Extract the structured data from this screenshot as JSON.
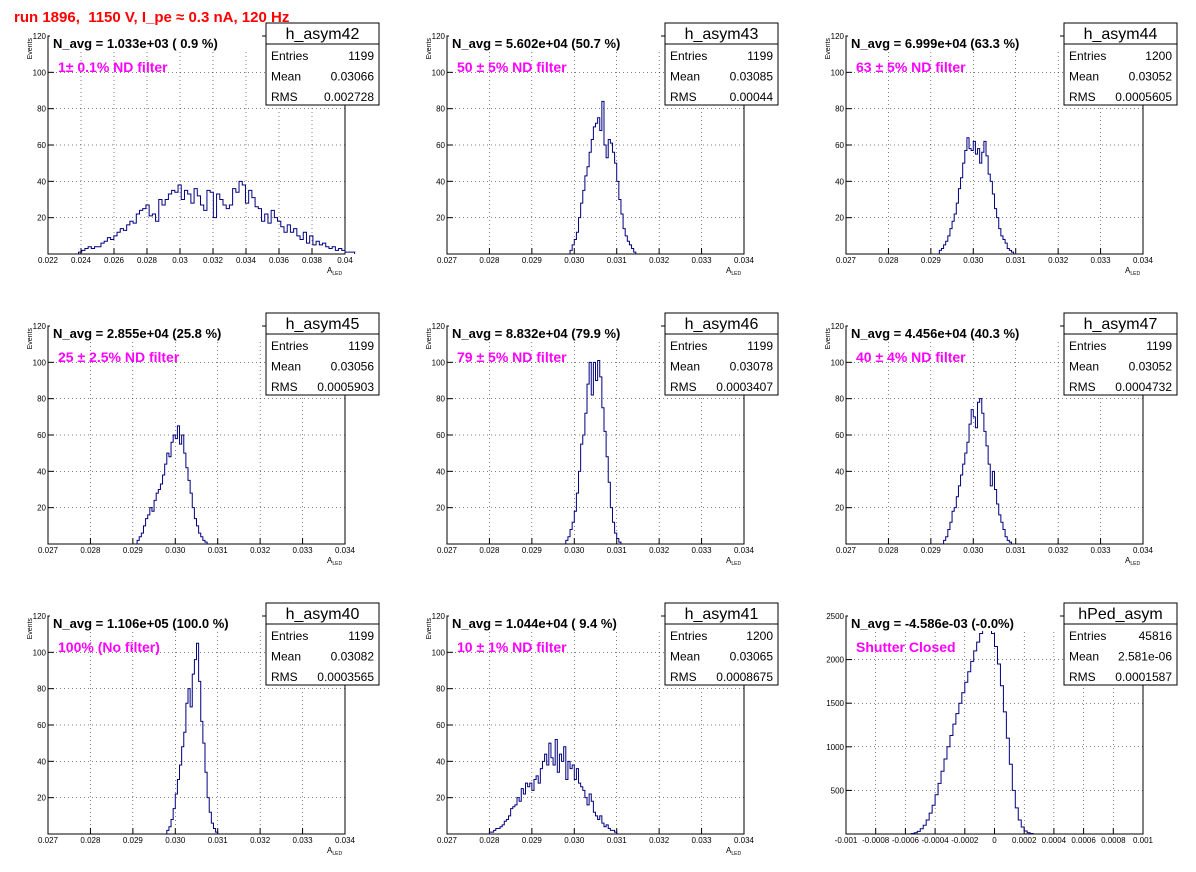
{
  "title": "run 1896,  1150 V, I_pe ≈ 0.3 nA, 120 Hz",
  "colors": {
    "histogram": "#000080",
    "annotation": "#ff00ff",
    "title": "#ff0000"
  },
  "chart_data": [
    {
      "type": "histogram",
      "name": "h_asym42",
      "stats": {
        "entries_label": "Entries",
        "entries": "1199",
        "mean_label": "Mean",
        "mean": "0.03066",
        "rms_label": "RMS",
        "rms": "0.002728"
      },
      "navg": "N_avg = 1.033e+03 ( 0.9 %)",
      "filter": "1± 0.1% ND filter",
      "xlabel": "A_LED",
      "ylabel": "Events",
      "xlim": [
        0.0215,
        0.04
      ],
      "ylim": [
        0,
        120
      ],
      "xticks": [
        "0.022",
        "0.024",
        "0.026",
        "0.028",
        "0.03",
        "0.032",
        "0.034",
        "0.036",
        "0.038",
        "0.04"
      ],
      "yticks": [
        "20",
        "40",
        "60",
        "80",
        "100",
        "120"
      ],
      "grid": true,
      "bins": {
        "start": 0.0234,
        "width": 0.0002,
        "counts": [
          1,
          2,
          3,
          4,
          3,
          4,
          4,
          6,
          7,
          9,
          8,
          10,
          12,
          14,
          13,
          16,
          18,
          17,
          22,
          24,
          25,
          27,
          21,
          22,
          18,
          30,
          27,
          30,
          33,
          35,
          34,
          38,
          30,
          35,
          33,
          28,
          36,
          32,
          27,
          24,
          35,
          34,
          20,
          33,
          30,
          27,
          25,
          27,
          36,
          34,
          40,
          38,
          28,
          35,
          31,
          26,
          25,
          18,
          22,
          17,
          24,
          20,
          18,
          15,
          12,
          16,
          12,
          14,
          10,
          8,
          12,
          6,
          10,
          5,
          7,
          5,
          6,
          4,
          3,
          4,
          2,
          3,
          2,
          1,
          1,
          1
        ]
      }
    },
    {
      "type": "histogram",
      "name": "h_asym43",
      "stats": {
        "entries_label": "Entries",
        "entries": "1199",
        "mean_label": "Mean",
        "mean": "0.03085",
        "rms_label": "RMS",
        "rms": "0.00044"
      },
      "navg": "N_avg = 5.602e+04 (50.7 %)",
      "filter": "50 ± 5% ND filter",
      "xlabel": "A_LED",
      "ylabel": "Events",
      "xlim": [
        0.027,
        0.034
      ],
      "ylim": [
        0,
        120
      ],
      "xticks": [
        "0.027",
        "0.028",
        "0.029",
        "0.030",
        "0.031",
        "0.032",
        "0.033",
        "0.034"
      ],
      "yticks": [
        "20",
        "40",
        "60",
        "80",
        "100",
        "120"
      ],
      "grid": true,
      "bins": {
        "start": 0.0299,
        "width": 5e-05,
        "counts": [
          2,
          5,
          8,
          12,
          20,
          28,
          35,
          43,
          48,
          56,
          63,
          70,
          72,
          75,
          68,
          84,
          60,
          53,
          63,
          61,
          56,
          50,
          40,
          30,
          22,
          14,
          10,
          7,
          5,
          3,
          1
        ]
      }
    },
    {
      "type": "histogram",
      "name": "h_asym44",
      "stats": {
        "entries_label": "Entries",
        "entries": "1200",
        "mean_label": "Mean",
        "mean": "0.03052",
        "rms_label": "RMS",
        "rms": "0.0005605"
      },
      "navg": "N_avg = 6.999e+04 (63.3 %)",
      "filter": "63 ± 5% ND filter",
      "xlabel": "A_LED",
      "ylabel": "Events",
      "xlim": [
        0.027,
        0.034
      ],
      "ylim": [
        0,
        120
      ],
      "xticks": [
        "0.027",
        "0.028",
        "0.029",
        "0.030",
        "0.031",
        "0.032",
        "0.033",
        "0.034"
      ],
      "yticks": [
        "20",
        "40",
        "60",
        "80",
        "100",
        "120"
      ],
      "grid": true,
      "bins": {
        "start": 0.0292,
        "width": 5e-05,
        "counts": [
          2,
          3,
          5,
          7,
          10,
          14,
          18,
          22,
          28,
          36,
          42,
          50,
          57,
          64,
          58,
          57,
          62,
          55,
          58,
          50,
          56,
          62,
          54,
          44,
          40,
          33,
          25,
          20,
          14,
          10,
          8,
          6,
          3,
          2,
          1
        ]
      }
    },
    {
      "type": "histogram",
      "name": "h_asym45",
      "stats": {
        "entries_label": "Entries",
        "entries": "1199",
        "mean_label": "Mean",
        "mean": "0.03056",
        "rms_label": "RMS",
        "rms": "0.0005903"
      },
      "navg": "N_avg = 2.855e+04 (25.8 %)",
      "filter": "25 ± 2.5% ND filter",
      "xlabel": "A_LED",
      "ylabel": "Events",
      "xlim": [
        0.027,
        0.034
      ],
      "ylim": [
        0,
        120
      ],
      "xticks": [
        "0.027",
        "0.028",
        "0.029",
        "0.030",
        "0.031",
        "0.032",
        "0.033",
        "0.034"
      ],
      "yticks": [
        "20",
        "40",
        "60",
        "80",
        "100",
        "120"
      ],
      "grid": true,
      "bins": {
        "start": 0.0291,
        "width": 5e-05,
        "counts": [
          2,
          4,
          6,
          10,
          14,
          16,
          20,
          18,
          24,
          28,
          30,
          33,
          38,
          44,
          50,
          48,
          56,
          60,
          58,
          65,
          55,
          60,
          50,
          42,
          35,
          28,
          20,
          14,
          10,
          6,
          4,
          2,
          1
        ]
      }
    },
    {
      "type": "histogram",
      "name": "h_asym46",
      "stats": {
        "entries_label": "Entries",
        "entries": "1199",
        "mean_label": "Mean",
        "mean": "0.03078",
        "rms_label": "RMS",
        "rms": "0.0003407"
      },
      "navg": "N_avg = 8.832e+04 (79.9 %)",
      "filter": "79 ± 5% ND filter",
      "xlabel": "A_LED",
      "ylabel": "Events",
      "xlim": [
        0.027,
        0.034
      ],
      "ylim": [
        0,
        120
      ],
      "xticks": [
        "0.027",
        "0.028",
        "0.029",
        "0.030",
        "0.031",
        "0.032",
        "0.033",
        "0.034"
      ],
      "yticks": [
        "20",
        "40",
        "60",
        "80",
        "100",
        "120"
      ],
      "grid": true,
      "bins": {
        "start": 0.0298,
        "width": 5e-05,
        "counts": [
          2,
          4,
          8,
          12,
          18,
          28,
          40,
          55,
          60,
          72,
          88,
          100,
          82,
          100,
          90,
          101,
          92,
          75,
          62,
          48,
          34,
          20,
          12,
          6,
          3,
          1
        ]
      }
    },
    {
      "type": "histogram",
      "name": "h_asym47",
      "stats": {
        "entries_label": "Entries",
        "entries": "1199",
        "mean_label": "Mean",
        "mean": "0.03052",
        "rms_label": "RMS",
        "rms": "0.0004732"
      },
      "navg": "N_avg = 4.456e+04 (40.3 %)",
      "filter": "40 ± 4% ND filter",
      "xlabel": "A_LED",
      "ylabel": "Events",
      "xlim": [
        0.027,
        0.034
      ],
      "ylim": [
        0,
        120
      ],
      "xticks": [
        "0.027",
        "0.028",
        "0.029",
        "0.030",
        "0.031",
        "0.032",
        "0.033",
        "0.034"
      ],
      "yticks": [
        "20",
        "40",
        "60",
        "80",
        "100",
        "120"
      ],
      "grid": true,
      "bins": {
        "start": 0.0293,
        "width": 5e-05,
        "counts": [
          2,
          4,
          8,
          12,
          18,
          20,
          26,
          32,
          38,
          44,
          50,
          56,
          66,
          74,
          70,
          64,
          78,
          80,
          72,
          62,
          54,
          44,
          32,
          40,
          30,
          22,
          16,
          12,
          8,
          4,
          2,
          1
        ]
      }
    },
    {
      "type": "histogram",
      "name": "h_asym40",
      "stats": {
        "entries_label": "Entries",
        "entries": "1199",
        "mean_label": "Mean",
        "mean": "0.03082",
        "rms_label": "RMS",
        "rms": "0.0003565"
      },
      "navg": "N_avg = 1.106e+05 (100.0 %)",
      "filter": "100% (No filter)",
      "xlabel": "A_LED",
      "ylabel": "Events",
      "xlim": [
        0.027,
        0.034
      ],
      "ylim": [
        0,
        120
      ],
      "xticks": [
        "0.027",
        "0.028",
        "0.029",
        "0.030",
        "0.031",
        "0.032",
        "0.033",
        "0.034"
      ],
      "yticks": [
        "20",
        "40",
        "60",
        "80",
        "100",
        "120"
      ],
      "grid": true,
      "bins": {
        "start": 0.0298,
        "width": 5e-05,
        "counts": [
          2,
          4,
          8,
          14,
          22,
          30,
          38,
          48,
          56,
          72,
          80,
          70,
          88,
          96,
          105,
          84,
          62,
          50,
          34,
          20,
          12,
          6,
          3,
          1
        ]
      }
    },
    {
      "type": "histogram",
      "name": "h_asym41",
      "stats": {
        "entries_label": "Entries",
        "entries": "1200",
        "mean_label": "Mean",
        "mean": "0.03065",
        "rms_label": "RMS",
        "rms": "0.0008675"
      },
      "navg": "N_avg = 1.044e+04 ( 9.4 %)",
      "filter": "10 ± 1% ND filter",
      "xlabel": "A_LED",
      "ylabel": "Events",
      "xlim": [
        0.027,
        0.034
      ],
      "ylim": [
        0,
        120
      ],
      "xticks": [
        "0.027",
        "0.028",
        "0.029",
        "0.030",
        "0.031",
        "0.032",
        "0.033",
        "0.034"
      ],
      "yticks": [
        "20",
        "40",
        "60",
        "80",
        "100",
        "120"
      ],
      "grid": true,
      "bins": {
        "start": 0.028,
        "width": 5e-05,
        "counts": [
          1,
          1,
          2,
          3,
          3,
          4,
          5,
          7,
          8,
          10,
          14,
          15,
          16,
          20,
          18,
          25,
          22,
          28,
          26,
          28,
          24,
          30,
          32,
          28,
          36,
          40,
          44,
          38,
          50,
          42,
          38,
          52,
          34,
          44,
          40,
          48,
          30,
          40,
          36,
          38,
          30,
          36,
          28,
          26,
          24,
          20,
          16,
          22,
          18,
          12,
          10,
          8,
          10,
          6,
          4,
          5,
          3,
          2,
          2,
          1
        ]
      }
    },
    {
      "type": "histogram",
      "name": "hPed_asym",
      "stats": {
        "entries_label": "Entries",
        "entries": "45816",
        "mean_label": "Mean",
        "mean": "2.581e-06",
        "rms_label": "RMS",
        "rms": "0.0001587"
      },
      "navg": "N_avg = -4.586e-03 (-0.0%)",
      "filter": "Shutter Closed",
      "xlabel": "",
      "ylabel": "",
      "xlim": [
        -0.001,
        0.001
      ],
      "ylim": [
        0,
        2500
      ],
      "xticks": [
        "-0.001",
        "-0.0008",
        "-0.0006",
        "-0.0004",
        "-0.0002",
        "0",
        "0.0002",
        "0.0004",
        "0.0006",
        "0.0008",
        "0.001"
      ],
      "yticks": [
        "500",
        "1000",
        "1500",
        "2000",
        "2500"
      ],
      "grid": true,
      "bins": {
        "start": -0.00056,
        "width": 2e-05,
        "counts": [
          5,
          15,
          30,
          60,
          100,
          160,
          240,
          330,
          450,
          580,
          720,
          860,
          1000,
          1130,
          1260,
          1380,
          1500,
          1620,
          1740,
          1860,
          1980,
          2100,
          2200,
          2300,
          2380,
          2460,
          2420,
          2300,
          2150,
          1950,
          1700,
          1400,
          1100,
          800,
          500,
          300,
          160,
          80,
          35,
          15,
          5
        ]
      }
    }
  ]
}
